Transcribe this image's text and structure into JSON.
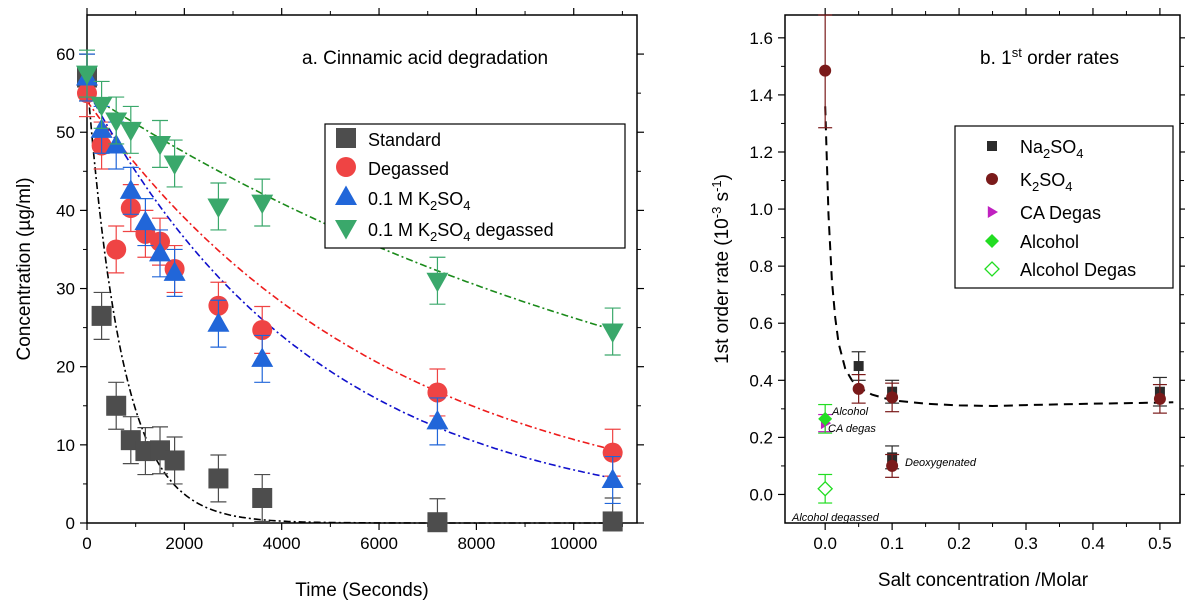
{
  "chart_data": [
    {
      "type": "scatter",
      "title": "a. Cinnamic acid degradation",
      "xlabel": "Time (Seconds)",
      "ylabel": "Concentration (µg/ml)",
      "xlim": [
        0,
        11300
      ],
      "ylim": [
        0,
        65
      ],
      "xticks": [
        0,
        2000,
        4000,
        6000,
        8000,
        10000
      ],
      "yticks": [
        0,
        10,
        20,
        30,
        40,
        50,
        60
      ],
      "xtick_labels": [
        "0",
        "2000",
        "4000",
        "6000",
        "8000",
        "10000"
      ],
      "ytick_labels": [
        "0",
        "10",
        "20",
        "30",
        "40",
        "50",
        "60"
      ],
      "legend_position": "upper-right",
      "series": [
        {
          "name": "Standard",
          "marker": "square",
          "color": "#4d4d4d",
          "fit_color": "#000000",
          "x": [
            0,
            300,
            600,
            900,
            1200,
            1500,
            1800,
            2700,
            3600,
            7200,
            10800
          ],
          "y": [
            57,
            26.5,
            15,
            10.6,
            9.2,
            9.3,
            8.0,
            5.7,
            3.2,
            0.1,
            0.2
          ],
          "err": [
            3,
            3,
            3,
            3,
            3,
            3,
            3,
            3,
            3,
            3,
            3
          ],
          "fit": {
            "a": 57,
            "k": 0.00137
          }
        },
        {
          "name": "Degassed",
          "marker": "circle",
          "color": "#ef4444",
          "fit_color": "#ee1c1c",
          "x": [
            0,
            300,
            600,
            900,
            1200,
            1500,
            1800,
            2700,
            3600,
            7200,
            10800
          ],
          "y": [
            55,
            48.3,
            35,
            40.3,
            37,
            36,
            32.5,
            27.8,
            24.7,
            16.7,
            9.0
          ],
          "err": [
            3,
            3,
            3,
            3,
            3,
            3,
            3,
            3,
            3,
            3,
            3
          ],
          "fit": {
            "a": 54,
            "k": 0.000162
          }
        },
        {
          "name": "0.1 M K₂SO₄",
          "marker": "triangle-up",
          "color": "#2166d9",
          "fit_color": "#1010cc",
          "x": [
            0,
            300,
            600,
            900,
            1200,
            1500,
            1800,
            2700,
            3600,
            7200,
            10800
          ],
          "y": [
            57,
            50.3,
            48.3,
            42.5,
            38.5,
            34.5,
            32,
            25.5,
            21,
            13,
            5.5
          ],
          "err": [
            3,
            3,
            3,
            3,
            3,
            3,
            3,
            3,
            3,
            3,
            3
          ],
          "fit": {
            "a": 55.5,
            "k": 0.00021
          }
        },
        {
          "name": "0.1 M K₂SO₄ degassed",
          "marker": "triangle-down",
          "color": "#3aa86b",
          "fit_color": "#1a8a1a",
          "x": [
            0,
            300,
            600,
            900,
            1500,
            1800,
            2700,
            3600,
            7200,
            10800
          ],
          "y": [
            57.5,
            53.5,
            51.5,
            50.3,
            48.5,
            46,
            40.5,
            41,
            31,
            24.5
          ],
          "err": [
            3,
            3,
            3,
            3,
            3,
            3,
            3,
            3,
            3,
            3
          ],
          "fit": {
            "a": 55,
            "k": 7.4e-05
          }
        }
      ]
    },
    {
      "type": "scatter",
      "title": "b. 1st order rates",
      "xlabel": "Salt concentration /Molar",
      "ylabel": "1st order rate (10⁻³ s⁻¹)",
      "xlim": [
        -0.06,
        0.53
      ],
      "ylim": [
        -0.1,
        1.68
      ],
      "xticks": [
        0.0,
        0.1,
        0.2,
        0.3,
        0.4,
        0.5
      ],
      "yticks": [
        0.0,
        0.2,
        0.4,
        0.6,
        0.8,
        1.0,
        1.2,
        1.4,
        1.6
      ],
      "xtick_labels": [
        "0.0",
        "0.1",
        "0.2",
        "0.3",
        "0.4",
        "0.5"
      ],
      "ytick_labels": [
        "0.0",
        "0.2",
        "0.4",
        "0.6",
        "0.8",
        "1.0",
        "1.2",
        "1.4",
        "1.6"
      ],
      "legend_position": "upper-right",
      "series": [
        {
          "name": "Na₂SO₄",
          "marker": "square",
          "color": "#2b2b2b",
          "x": [
            0.05,
            0.1,
            0.1,
            0.5
          ],
          "y": [
            0.45,
            0.36,
            0.13,
            0.36
          ],
          "err": [
            0.05,
            0.04,
            0.04,
            0.05
          ]
        },
        {
          "name": "K₂SO₄",
          "marker": "circle",
          "color": "#7a1a1a",
          "x": [
            0.0,
            0.05,
            0.1,
            0.1,
            0.5
          ],
          "y": [
            1.485,
            0.37,
            0.34,
            0.1,
            0.335
          ],
          "err": [
            0.2,
            0.05,
            0.05,
            0.04,
            0.05
          ]
        },
        {
          "name": "CA Degas",
          "marker": "triangle-right",
          "color": "#c020c0",
          "x": [
            0.0
          ],
          "y": [
            0.25
          ],
          "err": [
            0.03
          ]
        },
        {
          "name": "Alcohol",
          "marker": "diamond",
          "color": "#22dd22",
          "x": [
            0.0
          ],
          "y": [
            0.265
          ],
          "err": [
            0.05
          ]
        },
        {
          "name": "Alcohol Degas",
          "marker": "diamond-open",
          "color": "#22dd22",
          "x": [
            0.0
          ],
          "y": [
            0.02
          ],
          "err": [
            0.05
          ]
        }
      ],
      "fit_curve": {
        "color": "#000000",
        "style": "dashed",
        "x": [
          0.0,
          0.005,
          0.01,
          0.015,
          0.02,
          0.03,
          0.04,
          0.05,
          0.07,
          0.1,
          0.15,
          0.2,
          0.25,
          0.3,
          0.4,
          0.5,
          0.52
        ],
        "y": [
          1.36,
          0.98,
          0.75,
          0.62,
          0.53,
          0.44,
          0.4,
          0.375,
          0.35,
          0.33,
          0.318,
          0.312,
          0.31,
          0.313,
          0.318,
          0.322,
          0.323
        ]
      },
      "annotations": [
        "Alcohol",
        "CA degas",
        "Deoxygenated",
        "Alcohol degassed"
      ]
    }
  ]
}
